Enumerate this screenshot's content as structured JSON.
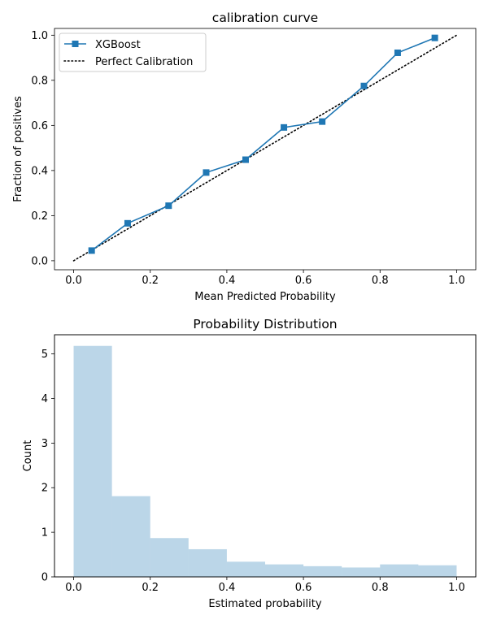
{
  "chart_data": [
    {
      "type": "line",
      "title": "calibration curve",
      "xlabel": "Mean Predicted Probability",
      "ylabel": "Fraction of positives",
      "xlim": [
        -0.05,
        1.05
      ],
      "ylim": [
        -0.04,
        1.03
      ],
      "xticks": [
        "0.0",
        "0.2",
        "0.4",
        "0.6",
        "0.8",
        "1.0"
      ],
      "xtick_values": [
        0.0,
        0.2,
        0.4,
        0.6,
        0.8,
        1.0
      ],
      "yticks": [
        "0.0",
        "0.2",
        "0.4",
        "0.6",
        "0.8",
        "1.0"
      ],
      "ytick_values": [
        0.0,
        0.2,
        0.4,
        0.6,
        0.8,
        1.0
      ],
      "grid": false,
      "legend": {
        "placement": "top-left",
        "entries": [
          "XGBoost",
          "Perfect Calibration"
        ]
      },
      "series": [
        {
          "name": "XGBoost",
          "color": "#1f77b4",
          "marker": "square",
          "x": [
            0.047,
            0.141,
            0.248,
            0.346,
            0.449,
            0.549,
            0.649,
            0.758,
            0.846,
            0.943
          ],
          "y": [
            0.045,
            0.166,
            0.244,
            0.391,
            0.448,
            0.591,
            0.617,
            0.775,
            0.922,
            0.988
          ]
        },
        {
          "name": "Perfect Calibration",
          "color": "#000000",
          "style": "dotted",
          "x": [
            0.0,
            1.0
          ],
          "y": [
            0.0,
            1.0
          ]
        }
      ]
    },
    {
      "type": "bar",
      "title": "Probability Distribution",
      "xlabel": "Estimated probability",
      "ylabel": "Count",
      "xlim": [
        -0.05,
        1.05
      ],
      "ylim": [
        0,
        5.43
      ],
      "xticks": [
        "0.0",
        "0.2",
        "0.4",
        "0.6",
        "0.8",
        "1.0"
      ],
      "xtick_values": [
        0.0,
        0.2,
        0.4,
        0.6,
        0.8,
        1.0
      ],
      "yticks": [
        "0",
        "1",
        "2",
        "3",
        "4",
        "5"
      ],
      "ytick_values": [
        0,
        1,
        2,
        3,
        4,
        5
      ],
      "grid": false,
      "color": "#1f77b4",
      "opacity": 0.3,
      "bin_edges": [
        0.0,
        0.1,
        0.2,
        0.3,
        0.4,
        0.5,
        0.6,
        0.7,
        0.8,
        0.9,
        1.0
      ],
      "values": [
        5.18,
        1.81,
        0.87,
        0.62,
        0.34,
        0.28,
        0.24,
        0.21,
        0.28,
        0.26
      ]
    }
  ]
}
